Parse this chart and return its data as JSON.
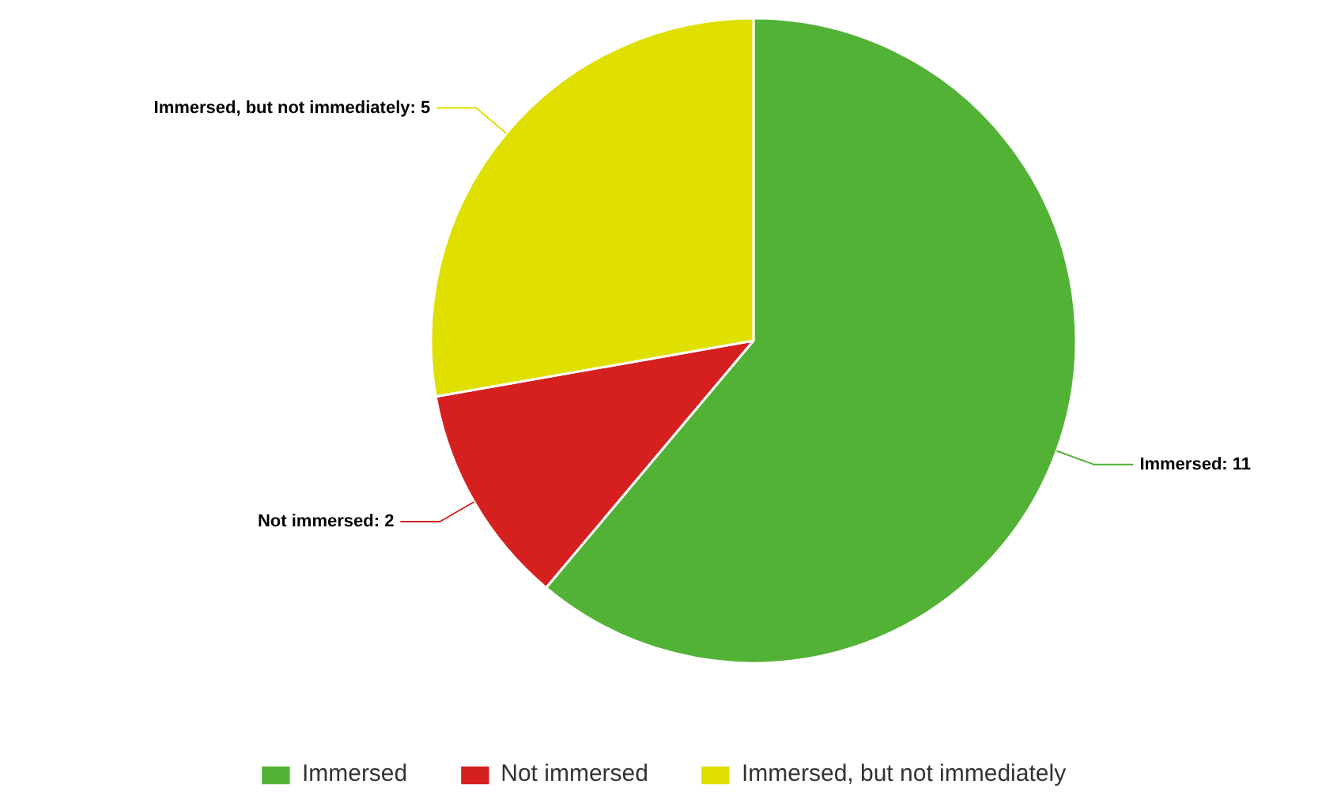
{
  "chart_data": {
    "type": "pie",
    "categories": [
      "Immersed",
      "Not immersed",
      "Immersed, but not immediately"
    ],
    "values": [
      11,
      2,
      5
    ],
    "colors": [
      "#52b236",
      "#d62020",
      "#dfe000"
    ],
    "value_labels": [
      "Immersed: 11",
      "Not immersed: 2",
      "Immersed, but not immediately: 5"
    ],
    "legend": "bottom"
  }
}
